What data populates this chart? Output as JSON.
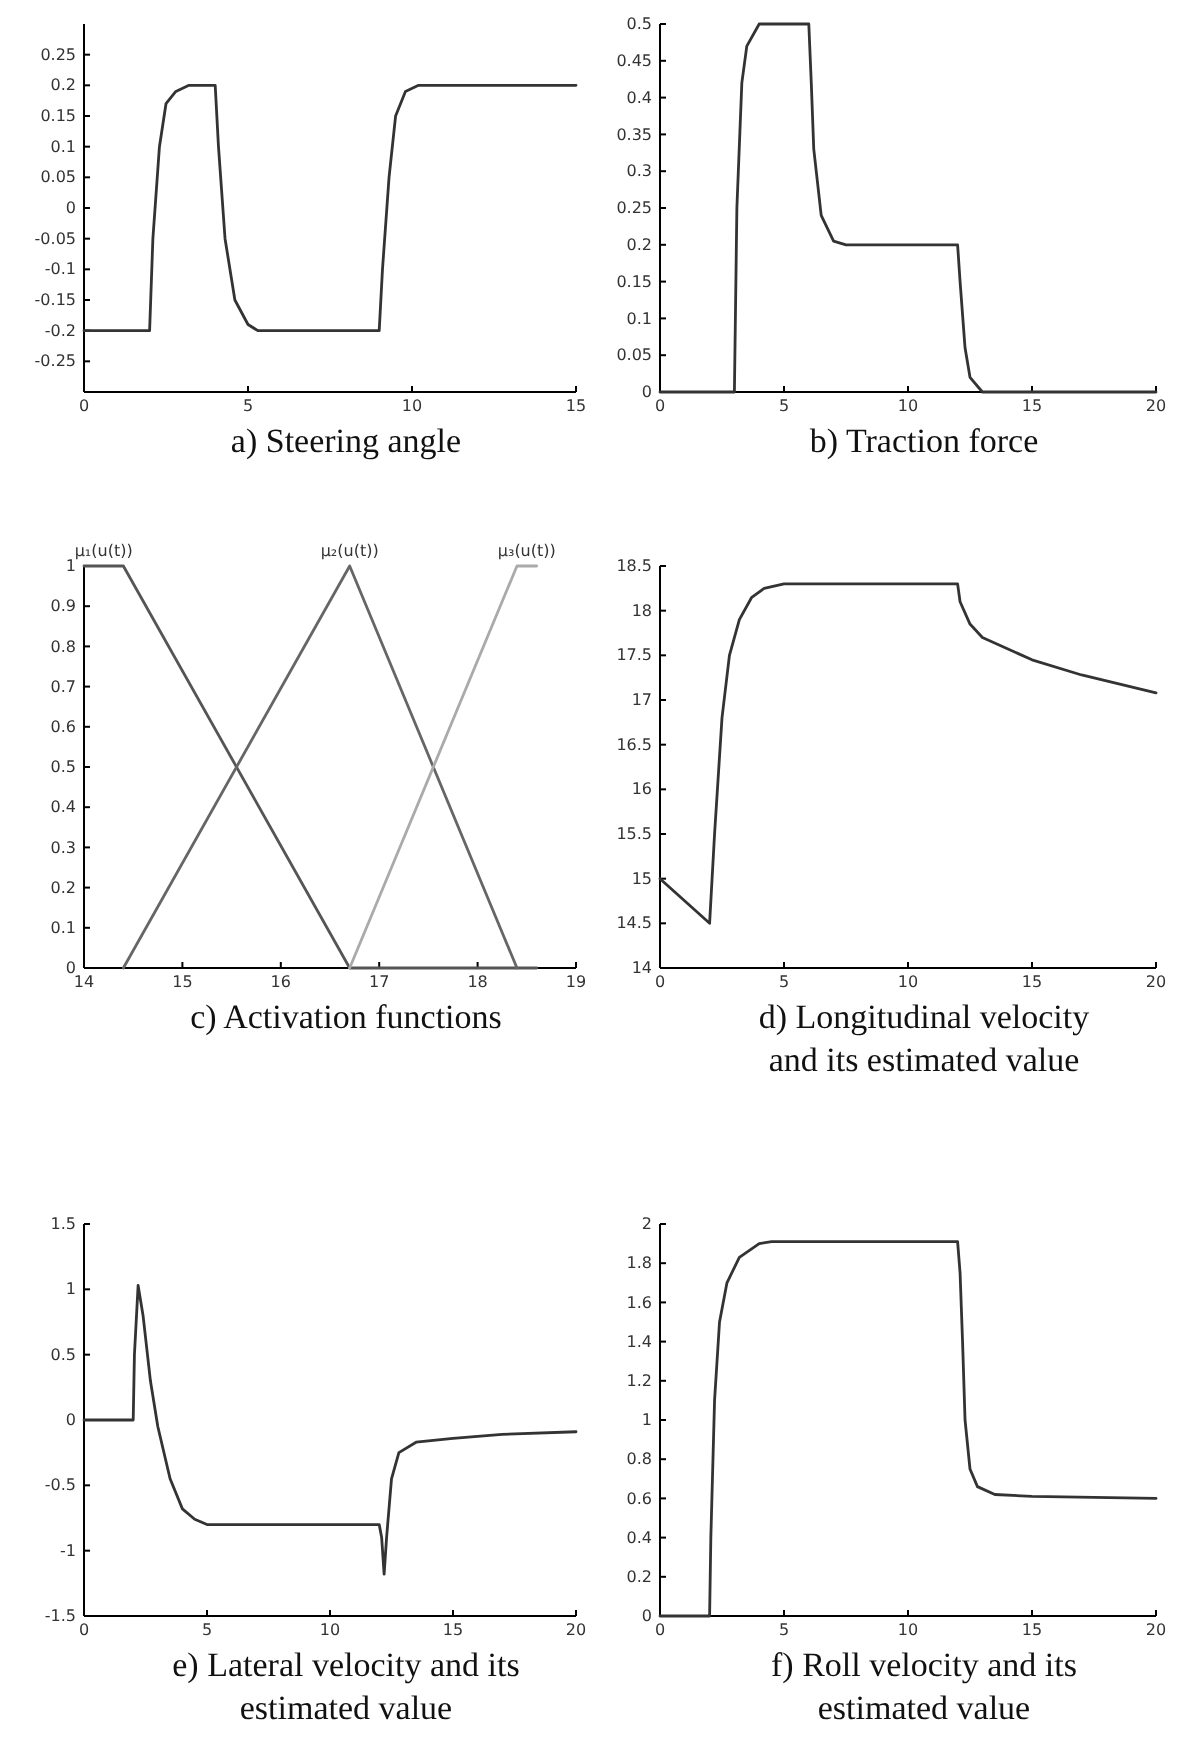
{
  "chart_data": [
    {
      "type": "line",
      "title": "a) Steering angle",
      "xlim": [
        0,
        15
      ],
      "xticks": [
        0,
        5,
        10,
        15
      ],
      "ylim": [
        -0.3,
        0.3
      ],
      "yticks": [
        -0.25,
        -0.2,
        -0.15,
        -0.1,
        -0.05,
        0,
        0.05,
        0.1,
        0.15,
        0.2,
        0.25
      ],
      "marker": "none",
      "line_style": "solid",
      "series": [
        {
          "color": "#333333",
          "x": [
            0,
            2,
            2.1,
            2.3,
            2.5,
            2.8,
            3.2,
            3.5,
            4,
            4.1,
            4.3,
            4.6,
            5,
            5.3,
            9,
            9.1,
            9.3,
            9.5,
            9.8,
            10.2,
            15
          ],
          "values": [
            -0.2,
            -0.2,
            -0.05,
            0.1,
            0.17,
            0.19,
            0.2,
            0.2,
            0.2,
            0.1,
            -0.05,
            -0.15,
            -0.19,
            -0.2,
            -0.2,
            -0.1,
            0.05,
            0.15,
            0.19,
            0.2,
            0.2
          ]
        }
      ]
    },
    {
      "type": "line",
      "title": "b) Traction force",
      "xlim": [
        0,
        20
      ],
      "xticks": [
        0,
        5,
        10,
        15,
        20
      ],
      "ylim": [
        0,
        0.5
      ],
      "yticks": [
        0,
        0.05,
        0.1,
        0.15,
        0.2,
        0.25,
        0.3,
        0.35,
        0.4,
        0.45,
        0.5
      ],
      "marker": "none",
      "line_style": "solid",
      "series": [
        {
          "color": "#333333",
          "x": [
            0,
            3,
            3.1,
            3.3,
            3.5,
            4,
            6,
            6.1,
            6.2,
            6.5,
            7,
            7.5,
            12,
            12.1,
            12.3,
            12.5,
            13,
            20
          ],
          "values": [
            0,
            0,
            0.25,
            0.42,
            0.47,
            0.5,
            0.5,
            0.42,
            0.33,
            0.24,
            0.205,
            0.2,
            0.2,
            0.15,
            0.06,
            0.02,
            0,
            0
          ]
        }
      ]
    },
    {
      "type": "line",
      "title": "c) Activation functions",
      "xlim": [
        14,
        19
      ],
      "xticks": [
        14,
        15,
        16,
        17,
        18,
        19
      ],
      "ylim": [
        0,
        1
      ],
      "yticks": [
        0,
        0.1,
        0.2,
        0.3,
        0.4,
        0.5,
        0.6,
        0.7,
        0.8,
        0.9,
        1
      ],
      "marker": "none",
      "line_style": "solid",
      "series": [
        {
          "name": "μ₁(u(t))",
          "color": "#555555",
          "x": [
            14,
            14.4,
            16.7,
            18.6
          ],
          "values": [
            1,
            1,
            0,
            0
          ]
        },
        {
          "name": "μ₂(u(t))",
          "color": "#666666",
          "x": [
            14.4,
            16.7,
            18.4
          ],
          "values": [
            0,
            1,
            0
          ]
        },
        {
          "name": "μ₃(u(t))",
          "color": "#aaaaaa",
          "x": [
            16.7,
            18.4,
            18.6
          ],
          "values": [
            0,
            1,
            1
          ]
        }
      ]
    },
    {
      "type": "line",
      "title": "d) Longitudinal velocity and its estimated value",
      "xlim": [
        0,
        20
      ],
      "xticks": [
        0,
        5,
        10,
        15,
        20
      ],
      "ylim": [
        14,
        18.5
      ],
      "yticks": [
        14,
        14.5,
        15,
        15.5,
        16,
        16.5,
        17,
        17.5,
        18,
        18.5
      ],
      "marker": "none",
      "line_style": "solid",
      "series": [
        {
          "color": "#333333",
          "x": [
            0,
            2,
            2.2,
            2.5,
            2.8,
            3.2,
            3.7,
            4.2,
            5,
            12,
            12.1,
            12.5,
            13,
            15,
            17,
            20
          ],
          "values": [
            15,
            14.5,
            15.5,
            16.8,
            17.5,
            17.9,
            18.15,
            18.25,
            18.3,
            18.3,
            18.1,
            17.85,
            17.7,
            17.45,
            17.28,
            17.08
          ]
        }
      ]
    },
    {
      "type": "line",
      "title": "e) Lateral velocity and its estimated value",
      "xlim": [
        0,
        20
      ],
      "xticks": [
        0,
        5,
        10,
        15,
        20
      ],
      "ylim": [
        -1.5,
        1.5
      ],
      "yticks": [
        -1.5,
        -1,
        -0.5,
        0,
        0.5,
        1,
        1.5
      ],
      "marker": "none",
      "line_style": "solid",
      "series": [
        {
          "color": "#333333",
          "x": [
            0,
            2,
            2.05,
            2.2,
            2.4,
            2.7,
            3,
            3.5,
            4,
            4.5,
            5,
            12,
            12.1,
            12.2,
            12.3,
            12.5,
            12.8,
            13.5,
            15,
            17,
            20
          ],
          "values": [
            0,
            0,
            0.5,
            1.03,
            0.8,
            0.3,
            -0.05,
            -0.45,
            -0.68,
            -0.76,
            -0.8,
            -0.8,
            -0.9,
            -1.18,
            -0.9,
            -0.45,
            -0.25,
            -0.17,
            -0.14,
            -0.11,
            -0.09
          ]
        }
      ]
    },
    {
      "type": "line",
      "title": "f) Roll velocity and its estimated value",
      "xlim": [
        0,
        20
      ],
      "xticks": [
        0,
        5,
        10,
        15,
        20
      ],
      "ylim": [
        0,
        2
      ],
      "yticks": [
        0,
        0.2,
        0.4,
        0.6,
        0.8,
        1,
        1.2,
        1.4,
        1.6,
        1.8,
        2
      ],
      "marker": "none",
      "line_style": "solid",
      "series": [
        {
          "color": "#333333",
          "x": [
            0,
            2,
            2.05,
            2.2,
            2.4,
            2.7,
            3.2,
            4,
            4.5,
            12,
            12.1,
            12.2,
            12.3,
            12.5,
            12.8,
            13.5,
            15,
            20
          ],
          "values": [
            0,
            0,
            0.4,
            1.1,
            1.5,
            1.7,
            1.83,
            1.9,
            1.91,
            1.91,
            1.75,
            1.4,
            1,
            0.75,
            0.66,
            0.62,
            0.61,
            0.6
          ]
        }
      ]
    }
  ]
}
